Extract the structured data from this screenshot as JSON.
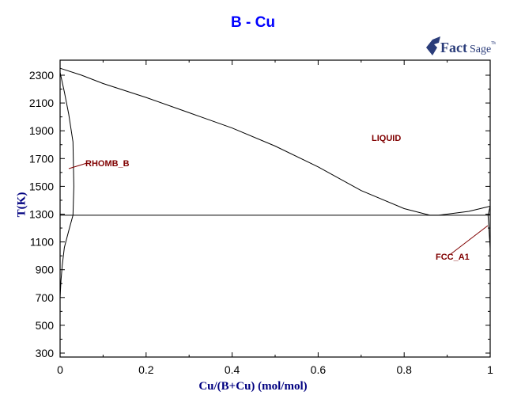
{
  "chart_data": {
    "type": "line",
    "title": "B - Cu",
    "xlabel": "Cu/(B+Cu) (mol/mol)",
    "ylabel": "T(K)",
    "xlim": [
      0,
      1
    ],
    "ylim": [
      300,
      2400
    ],
    "x_ticks": [
      "0",
      "0.2",
      "0.4",
      "0.6",
      "0.8",
      "1"
    ],
    "y_ticks": [
      "2300",
      "2100",
      "1900",
      "1700",
      "1500",
      "1300",
      "1100",
      "900",
      "700",
      "500",
      "300"
    ],
    "grid": false,
    "legend": null,
    "phase_labels": [
      "LIQUID",
      "RHOMB_B",
      "FCC_A1"
    ],
    "series": [
      {
        "name": "liquidus",
        "x": [
          0,
          0.05,
          0.1,
          0.2,
          0.3,
          0.4,
          0.5,
          0.6,
          0.7,
          0.8,
          0.86,
          0.88,
          0.95,
          1.0
        ],
        "y": [
          2350,
          2300,
          2240,
          2140,
          2030,
          1920,
          1790,
          1640,
          1470,
          1340,
          1292,
          1292,
          1320,
          1357
        ]
      },
      {
        "name": "RHOMB_B solvus (high T)",
        "x": [
          0,
          0.01,
          0.02,
          0.03,
          0.032,
          0.03
        ],
        "y": [
          2320,
          2180,
          2020,
          1820,
          1500,
          1292
        ]
      },
      {
        "name": "RHOMB_B solvus (low T)",
        "x": [
          0.03,
          0.02,
          0.01,
          0.005,
          0.002,
          0.0
        ],
        "y": [
          1292,
          1180,
          1060,
          930,
          820,
          700
        ]
      },
      {
        "name": "eutectic line",
        "x": [
          0.0,
          1.0
        ],
        "y": [
          1292,
          1292
        ]
      },
      {
        "name": "FCC_A1 solvus",
        "x": [
          1.0,
          0.995,
          0.997,
          1.0
        ],
        "y": [
          1357,
          1292,
          1200,
          1050
        ]
      }
    ],
    "annotations": [
      {
        "text": "LIQUID",
        "x": 0.74,
        "y": 1840
      },
      {
        "text": "RHOMB_B",
        "x": 0.06,
        "y": 1680
      },
      {
        "text": "FCC_A1",
        "x": 0.88,
        "y": 1100
      }
    ]
  },
  "header": {
    "title": "B - Cu",
    "logo_text": "FactSage"
  },
  "axes": {
    "xlabel": "Cu/(B+Cu) (mol/mol)",
    "ylabel": "T(K)"
  }
}
